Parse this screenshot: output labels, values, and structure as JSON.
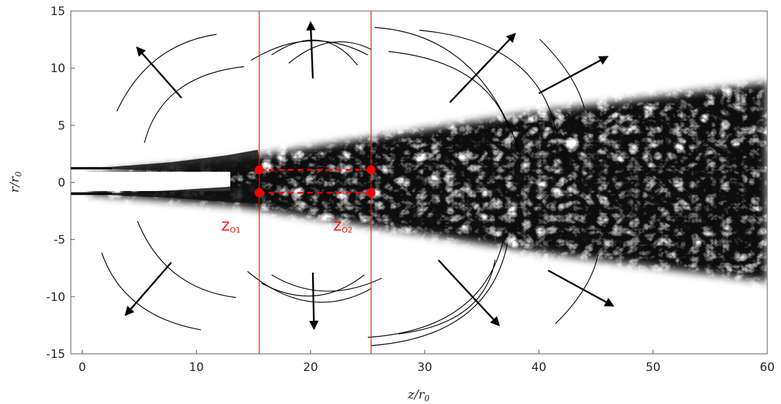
{
  "chart_data": {
    "type": "scatter",
    "title": "",
    "xlabel": "z/r0",
    "ylabel": "r/r0",
    "xlabel_parts": {
      "main": "z/r",
      "sub": "0"
    },
    "ylabel_parts": {
      "main": "r/r",
      "sub": "0"
    },
    "xlim": [
      -1,
      60
    ],
    "ylim": [
      -15,
      15
    ],
    "x_ticks": [
      0,
      10,
      20,
      30,
      40,
      50,
      60
    ],
    "y_ticks": [
      15,
      10,
      5,
      0,
      -5,
      -10,
      -15
    ],
    "x_tick_labels": [
      "0",
      "10",
      "20",
      "30",
      "40",
      "50",
      "60"
    ],
    "y_tick_labels": [
      "15",
      "10",
      "5",
      "0",
      "-5",
      "-10",
      "-15"
    ],
    "grid": false,
    "marker_color": "#ff0000",
    "line_color": "#cc2200",
    "vertical_lines": [
      15.5,
      25.3
    ],
    "zones": [
      {
        "main": "Z",
        "sub": "O1",
        "x": 15.5
      },
      {
        "main": "Z",
        "sub": "O2",
        "x": 25.3
      }
    ],
    "points": [
      {
        "x": 15.5,
        "y": 1.1
      },
      {
        "x": 15.5,
        "y": -0.9
      },
      {
        "x": 25.3,
        "y": 1.1
      },
      {
        "x": 25.3,
        "y": -0.9
      }
    ],
    "dashed_segments": [
      {
        "x": [
          15.5,
          25.3
        ],
        "y": [
          1.1,
          1.1
        ]
      },
      {
        "x": [
          15.5,
          25.3
        ],
        "y": [
          -0.9,
          -0.9
        ]
      }
    ],
    "arrows": [
      {
        "from": [
          8.7,
          7.4
        ],
        "to": [
          4.8,
          11.8
        ]
      },
      {
        "from": [
          20.2,
          9.1
        ],
        "to": [
          20.0,
          14.0
        ]
      },
      {
        "from": [
          32.2,
          7.0
        ],
        "to": [
          37.9,
          13.0
        ]
      },
      {
        "from": [
          40.0,
          7.8
        ],
        "to": [
          46.0,
          11.0
        ]
      },
      {
        "from": [
          7.8,
          -7.0
        ],
        "to": [
          3.8,
          -11.6
        ]
      },
      {
        "from": [
          20.2,
          -7.9
        ],
        "to": [
          20.3,
          -12.8
        ]
      },
      {
        "from": [
          31.2,
          -6.8
        ],
        "to": [
          36.5,
          -12.5
        ]
      },
      {
        "from": [
          40.8,
          -7.7
        ],
        "to": [
          46.5,
          -10.8
        ]
      }
    ]
  }
}
